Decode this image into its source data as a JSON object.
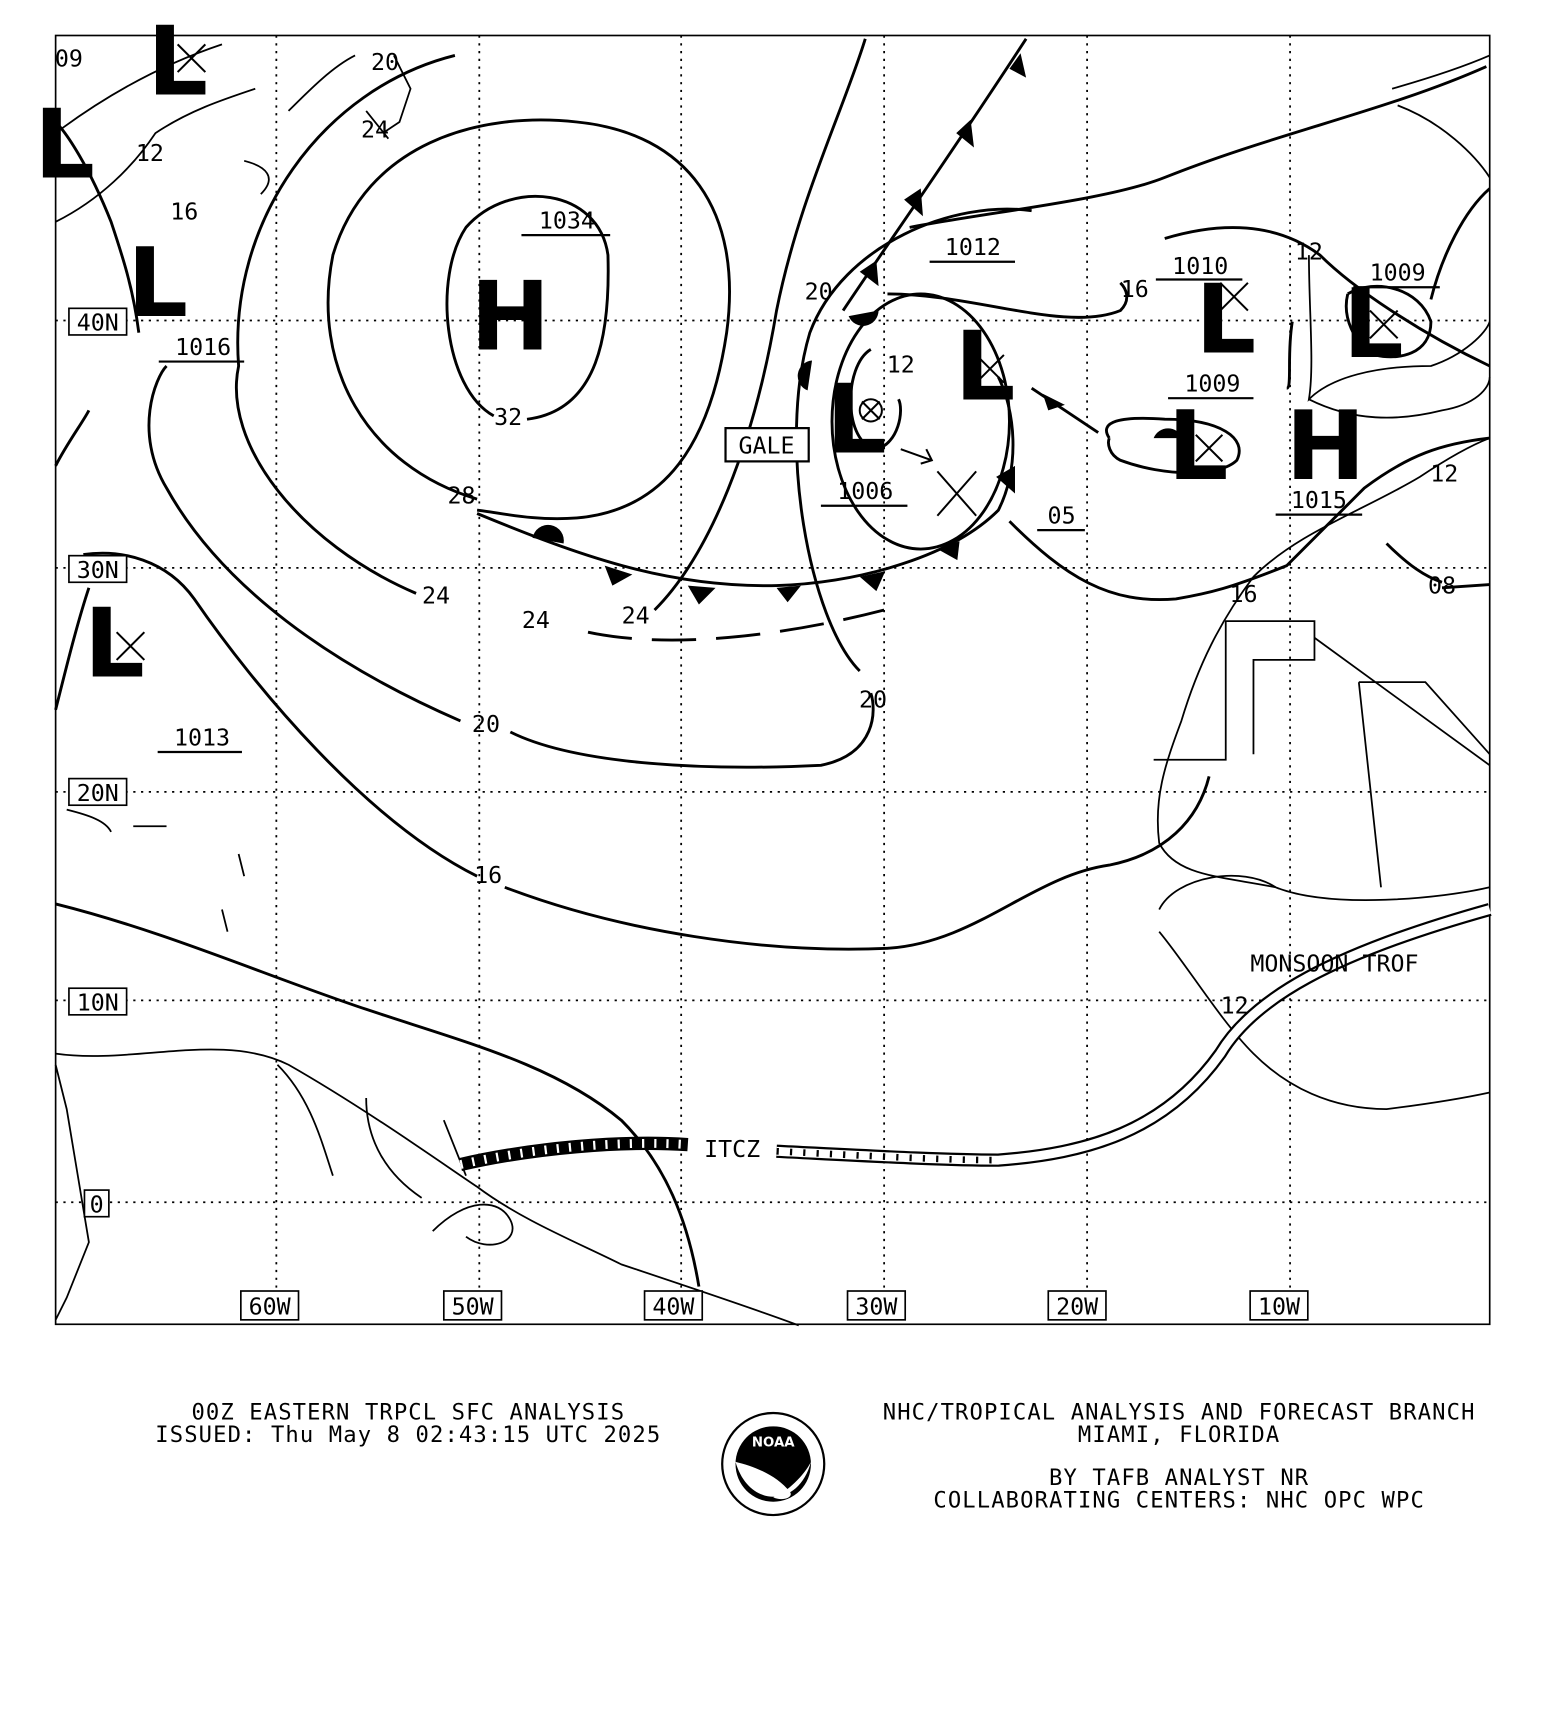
{
  "map": {
    "colors": {
      "ink": "#000000",
      "background": "#ffffff"
    },
    "longitude_labels": [
      "60W",
      "50W",
      "40W",
      "30W",
      "20W",
      "10W"
    ],
    "latitude_labels": [
      "40N",
      "30N",
      "20N",
      "10N",
      "0"
    ],
    "pressure_centers": [
      {
        "type": "H",
        "pressure": "1034"
      },
      {
        "type": "L",
        "pressure": "1016"
      },
      {
        "type": "L",
        "pressure": "1013"
      },
      {
        "type": "L",
        "pressure": "1006"
      },
      {
        "type": "L",
        "pressure": "1012"
      },
      {
        "type": "L",
        "pressure": "1010"
      },
      {
        "type": "L",
        "pressure": "1009"
      },
      {
        "type": "L",
        "pressure": "1009"
      },
      {
        "type": "H",
        "pressure": "1015"
      },
      {
        "type": "L",
        "pressure": ""
      },
      {
        "type": "L",
        "pressure": ""
      }
    ],
    "low_center_05": "05",
    "isobar_labels": [
      "09",
      "12",
      "16",
      "20",
      "24",
      "32",
      "28",
      "24",
      "24",
      "24",
      "20",
      "16",
      "20",
      "12",
      "20",
      "16",
      "12",
      "12",
      "08",
      "16",
      "12"
    ],
    "gale_label": "GALE",
    "itcz_label": "ITCZ",
    "monsoon_label": "MONSOON TROF"
  },
  "footer": {
    "title": "00Z EASTERN TRPCL SFC ANALYSIS",
    "issued": "ISSUED: Thu May 8 02:43:15 UTC 2025",
    "branch": "NHC/TROPICAL ANALYSIS AND FORECAST BRANCH",
    "location": "MIAMI,  FLORIDA",
    "analyst": "BY TAFB ANALYST  NR",
    "collaborating": "COLLABORATING CENTERS: NHC OPC WPC",
    "logo_text": "NOAA",
    "logo_ring_text": "NATIONAL OCEANIC AND ATMOSPHERIC ADMINISTRATION - U.S. DEPARTMENT OF COMMERCE"
  }
}
